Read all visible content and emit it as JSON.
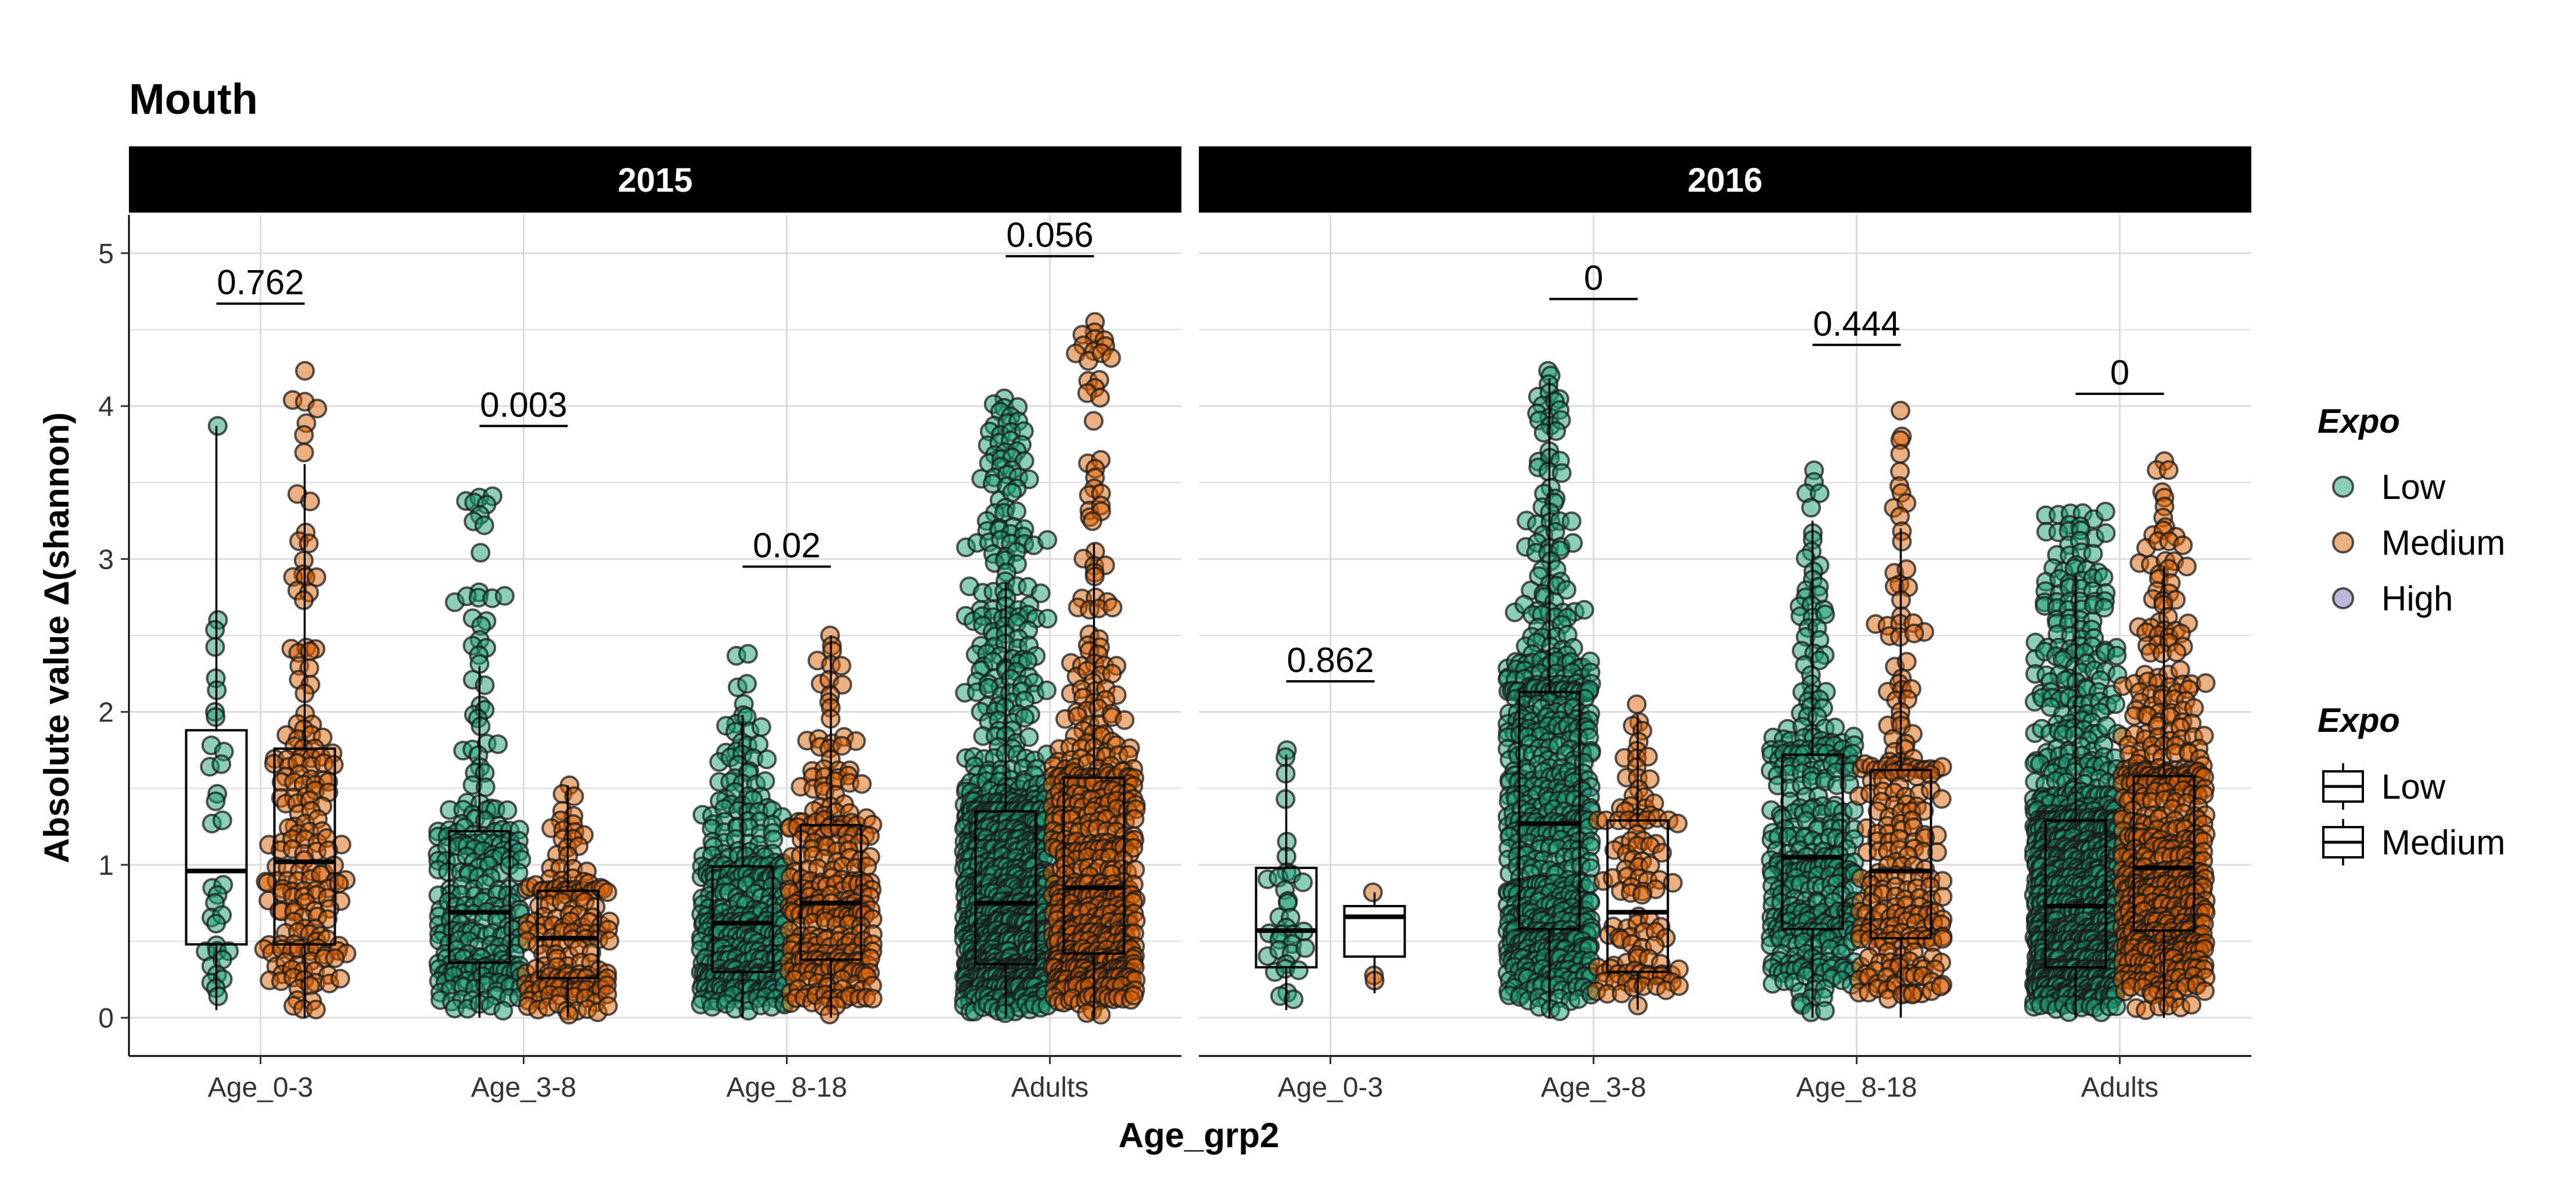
{
  "chart_data": {
    "type": "box+beeswarm",
    "title": "Mouth",
    "ylabel": "Absolute value Δ(shannon)",
    "xlabel": "Age_grp2",
    "ylim": [
      -0.25,
      5.25
    ],
    "yticks": [
      0,
      1,
      2,
      3,
      4,
      5
    ],
    "grid": true,
    "categories": [
      "Age_0-3",
      "Age_3-8",
      "Age_8-18",
      "Adults"
    ],
    "legend": {
      "placement": "right",
      "fill_title": "Expo",
      "fill_entries": [
        {
          "label": "Low",
          "color": "#1b9e77"
        },
        {
          "label": "Medium",
          "color": "#d95f02"
        },
        {
          "label": "High",
          "color": "#7570b3"
        }
      ],
      "box_title": "Expo",
      "box_entries": [
        "Low",
        "Medium"
      ]
    },
    "panels": [
      {
        "name": "2015",
        "groups": [
          {
            "category": "Age_0-3",
            "expo": "Low",
            "q1": 0.48,
            "median": 0.96,
            "q3": 1.88,
            "wlo": 0.05,
            "whi": 3.87,
            "n": 34,
            "maxpt": 3.87
          },
          {
            "category": "Age_0-3",
            "expo": "Medium",
            "q1": 0.48,
            "median": 1.02,
            "q3": 1.76,
            "wlo": 0.0,
            "whi": 3.62,
            "n": 180,
            "maxpt": 4.23
          },
          {
            "category": "Age_3-8",
            "expo": "Low",
            "q1": 0.36,
            "median": 0.69,
            "q3": 1.22,
            "wlo": 0.0,
            "whi": 2.3,
            "n": 240,
            "maxpt": 3.41
          },
          {
            "category": "Age_3-8",
            "expo": "Medium",
            "q1": 0.26,
            "median": 0.52,
            "q3": 0.83,
            "wlo": 0.0,
            "whi": 1.52,
            "n": 150,
            "maxpt": 1.52
          },
          {
            "category": "Age_8-18",
            "expo": "Low",
            "q1": 0.3,
            "median": 0.62,
            "q3": 0.99,
            "wlo": 0.0,
            "whi": 1.98,
            "n": 360,
            "maxpt": 2.38
          },
          {
            "category": "Age_8-18",
            "expo": "Medium",
            "q1": 0.38,
            "median": 0.75,
            "q3": 1.26,
            "wlo": 0.0,
            "whi": 2.5,
            "n": 260,
            "maxpt": 2.5
          },
          {
            "category": "Adults",
            "expo": "Low",
            "q1": 0.35,
            "median": 0.75,
            "q3": 1.35,
            "wlo": 0.0,
            "whi": 2.85,
            "n": 950,
            "maxpt": 4.05
          },
          {
            "category": "Adults",
            "expo": "Medium",
            "q1": 0.42,
            "median": 0.85,
            "q3": 1.57,
            "wlo": 0.0,
            "whi": 3.1,
            "n": 520,
            "maxpt": 4.55
          }
        ],
        "pvalues": [
          {
            "category": "Age_0-3",
            "label": "0.762",
            "y": 4.67
          },
          {
            "category": "Age_3-8",
            "label": "0.003",
            "y": 3.87
          },
          {
            "category": "Age_8-18",
            "label": "0.02",
            "y": 2.95
          },
          {
            "category": "Adults",
            "label": "0.056",
            "y": 4.98
          }
        ]
      },
      {
        "name": "2016",
        "groups": [
          {
            "category": "Age_0-3",
            "expo": "Low",
            "q1": 0.33,
            "median": 0.57,
            "q3": 0.98,
            "wlo": 0.05,
            "whi": 1.72,
            "n": 34,
            "maxpt": 1.75
          },
          {
            "category": "Age_0-3",
            "expo": "Medium",
            "q1": 0.4,
            "median": 0.66,
            "q3": 0.73,
            "wlo": 0.16,
            "whi": 0.82,
            "n": 3,
            "maxpt": 0.82
          },
          {
            "category": "Age_3-8",
            "expo": "Low",
            "q1": 0.58,
            "median": 1.27,
            "q3": 2.13,
            "wlo": 0.0,
            "whi": 4.18,
            "n": 620,
            "maxpt": 4.23
          },
          {
            "category": "Age_3-8",
            "expo": "Medium",
            "q1": 0.3,
            "median": 0.69,
            "q3": 1.29,
            "wlo": 0.05,
            "whi": 1.98,
            "n": 110,
            "maxpt": 2.05
          },
          {
            "category": "Age_8-18",
            "expo": "Low",
            "q1": 0.58,
            "median": 1.05,
            "q3": 1.72,
            "wlo": 0.0,
            "whi": 3.25,
            "n": 330,
            "maxpt": 3.58
          },
          {
            "category": "Age_8-18",
            "expo": "Medium",
            "q1": 0.52,
            "median": 0.96,
            "q3": 1.62,
            "wlo": 0.0,
            "whi": 3.2,
            "n": 230,
            "maxpt": 3.97
          },
          {
            "category": "Adults",
            "expo": "Low",
            "q1": 0.33,
            "median": 0.73,
            "q3": 1.29,
            "wlo": 0.0,
            "whi": 2.9,
            "n": 1000,
            "maxpt": 3.31
          },
          {
            "category": "Adults",
            "expo": "Medium",
            "q1": 0.57,
            "median": 0.98,
            "q3": 1.58,
            "wlo": 0.0,
            "whi": 2.95,
            "n": 520,
            "maxpt": 3.64
          }
        ],
        "pvalues": [
          {
            "category": "Age_0-3",
            "label": "0.862",
            "y": 2.2
          },
          {
            "category": "Age_3-8",
            "label": "0",
            "y": 4.7
          },
          {
            "category": "Age_8-18",
            "label": "0.444",
            "y": 4.4
          },
          {
            "category": "Adults",
            "label": "0",
            "y": 4.08
          }
        ]
      }
    ]
  }
}
